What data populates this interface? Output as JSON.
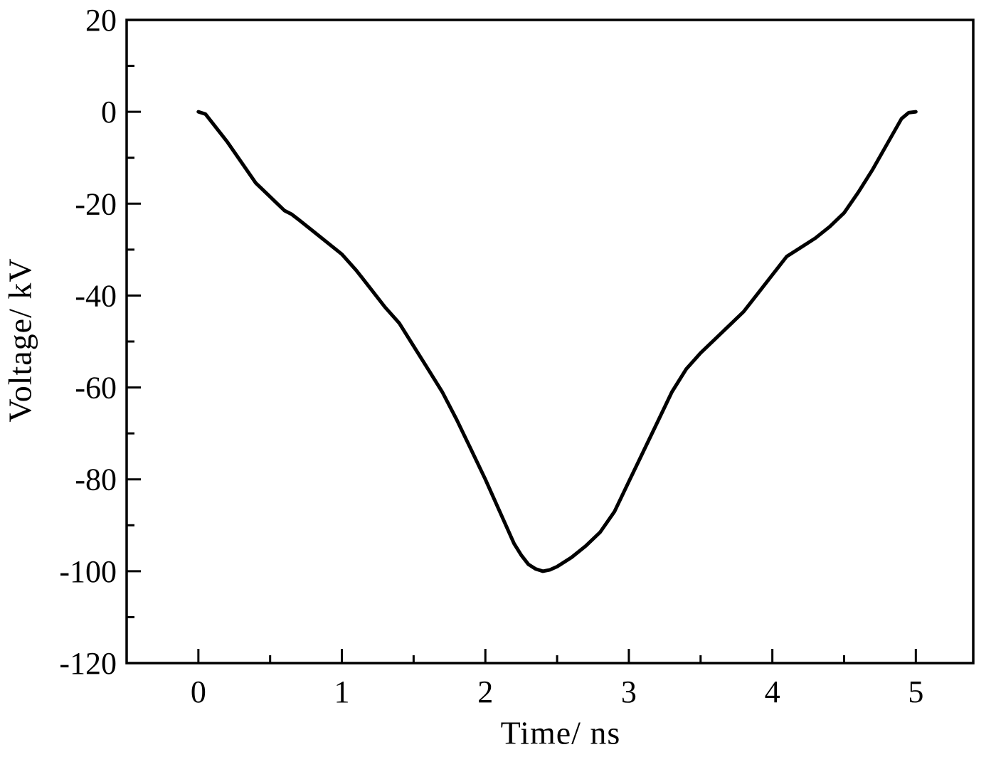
{
  "chart_data": {
    "type": "line",
    "title": "",
    "xlabel": "Time/ ns",
    "ylabel": "Voltage/ kV",
    "xlim": [
      -0.5,
      5.4
    ],
    "ylim": [
      -120,
      20
    ],
    "x_major_ticks": [
      0,
      1,
      2,
      3,
      4,
      5
    ],
    "x_minor_step": 0.5,
    "y_major_ticks": [
      20,
      0,
      -20,
      -40,
      -60,
      -80,
      -100,
      -120
    ],
    "y_minor_step": 10,
    "grid": false,
    "legend_position": "none",
    "line_color": "#000000",
    "line_width": 5,
    "axis_color": "#000000",
    "series": [
      {
        "name": "voltage",
        "x": [
          0,
          0.05,
          0.1,
          0.2,
          0.3,
          0.4,
          0.5,
          0.6,
          0.65,
          0.7,
          0.8,
          0.9,
          1.0,
          1.1,
          1.2,
          1.3,
          1.4,
          1.5,
          1.6,
          1.7,
          1.8,
          1.9,
          2.0,
          2.1,
          2.2,
          2.25,
          2.3,
          2.35,
          2.4,
          2.45,
          2.5,
          2.6,
          2.7,
          2.8,
          2.9,
          3.0,
          3.1,
          3.2,
          3.3,
          3.4,
          3.5,
          3.6,
          3.7,
          3.8,
          3.9,
          4.0,
          4.1,
          4.2,
          4.3,
          4.4,
          4.5,
          4.6,
          4.7,
          4.8,
          4.9,
          4.95,
          5.0
        ],
        "y": [
          0,
          -0.5,
          -2.5,
          -6.5,
          -11,
          -15.5,
          -18.5,
          -21.5,
          -22.3,
          -23.5,
          -26,
          -28.5,
          -31,
          -34.5,
          -38.5,
          -42.5,
          -46,
          -51,
          -56,
          -61,
          -67,
          -73.5,
          -80,
          -87,
          -94,
          -96.5,
          -98.5,
          -99.5,
          -100,
          -99.7,
          -99,
          -97,
          -94.5,
          -91.5,
          -87,
          -80.5,
          -74,
          -67.5,
          -61,
          -56,
          -52.5,
          -49.5,
          -46.5,
          -43.5,
          -39.5,
          -35.5,
          -31.5,
          -29.5,
          -27.5,
          -25,
          -22,
          -17.5,
          -12.5,
          -7,
          -1.5,
          -0.2,
          0
        ]
      }
    ]
  }
}
